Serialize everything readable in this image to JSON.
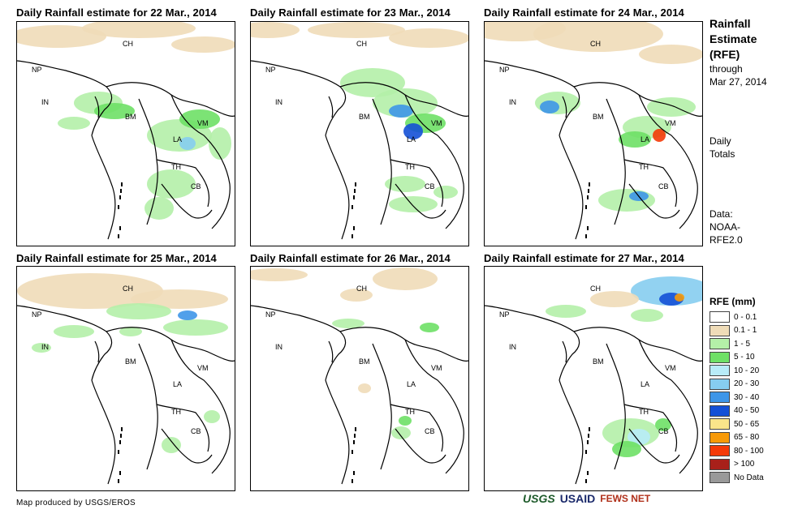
{
  "panels": [
    {
      "title": "Daily Rainfall estimate for 22 Mar., 2014"
    },
    {
      "title": "Daily Rainfall estimate for 23 Mar., 2014"
    },
    {
      "title": "Daily Rainfall estimate for 24 Mar., 2014"
    },
    {
      "title": "Daily Rainfall estimate for 25 Mar., 2014"
    },
    {
      "title": "Daily Rainfall estimate for 26 Mar., 2014"
    },
    {
      "title": "Daily Rainfall estimate for 27 Mar., 2014"
    }
  ],
  "country_labels": [
    "CH",
    "NP",
    "IN",
    "BM",
    "VM",
    "LA",
    "TH",
    "CB"
  ],
  "side": {
    "title_line1": "Rainfall",
    "title_line2": "Estimate",
    "title_line3": "(RFE)",
    "through": "through",
    "through_date": "Mar 27, 2014",
    "daily": "Daily",
    "totals": "Totals",
    "data_label": "Data:",
    "data_src1": "NOAA-",
    "data_src2": "RFE2.0"
  },
  "legend": {
    "title": "RFE (mm)",
    "items": [
      {
        "label": "0 - 0.1",
        "color": "#ffffff"
      },
      {
        "label": "0.1 - 1",
        "color": "#efdcb8"
      },
      {
        "label": "1 - 5",
        "color": "#b4f0a8"
      },
      {
        "label": "5 - 10",
        "color": "#6ee066"
      },
      {
        "label": "10 - 20",
        "color": "#b8ecf8"
      },
      {
        "label": "20 - 30",
        "color": "#86cdf0"
      },
      {
        "label": "30 - 40",
        "color": "#3e96e8"
      },
      {
        "label": "40 - 50",
        "color": "#1450d6"
      },
      {
        "label": "50 - 65",
        "color": "#fae58a"
      },
      {
        "label": "65 - 80",
        "color": "#f79a08"
      },
      {
        "label": "80 - 100",
        "color": "#f43a08"
      },
      {
        "label": "> 100",
        "color": "#a8201a"
      },
      {
        "label": "No Data",
        "color": "#999999"
      }
    ]
  },
  "footer": "Map produced by USGS/EROS",
  "logos": [
    "USGS",
    "USAID",
    "FEWS NET"
  ]
}
